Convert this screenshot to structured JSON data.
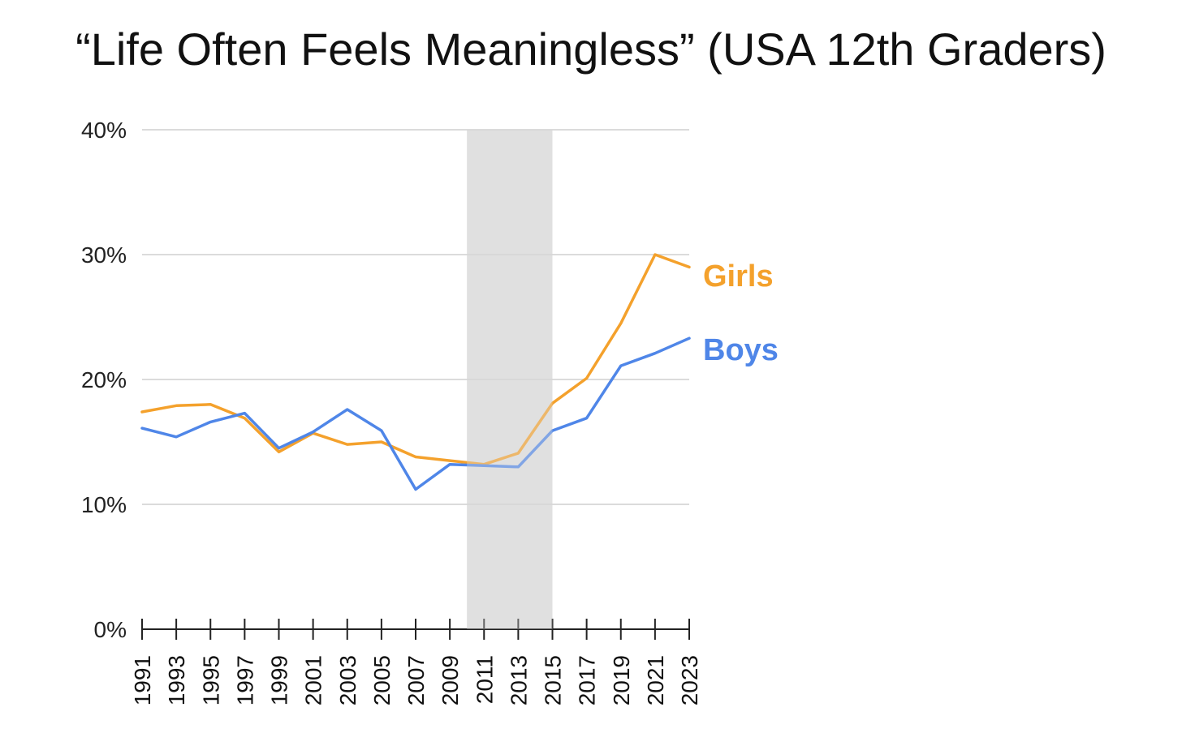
{
  "chart_data": {
    "type": "line",
    "title": "“Life Often Feels Meaningless” (USA 12th Graders)",
    "x": [
      "1991",
      "1993",
      "1995",
      "1997",
      "1999",
      "2001",
      "2003",
      "2005",
      "2007",
      "2009",
      "2011",
      "2013",
      "2015",
      "2017",
      "2019",
      "2021",
      "2023"
    ],
    "y_ticks": [
      {
        "value": 0,
        "label": "0%"
      },
      {
        "value": 10,
        "label": "10%"
      },
      {
        "value": 20,
        "label": "20%"
      },
      {
        "value": 30,
        "label": "30%"
      },
      {
        "value": 40,
        "label": "40%"
      }
    ],
    "ylim": [
      0,
      40
    ],
    "xlim": [
      1991,
      2023
    ],
    "grid": true,
    "shaded_band": {
      "from": 2010,
      "to": 2015,
      "color": "#e0e0e0"
    },
    "series": [
      {
        "name": "Girls",
        "color": "#f4a12c",
        "points": [
          [
            1991,
            17.4
          ],
          [
            1993,
            17.9
          ],
          [
            1995,
            18.0
          ],
          [
            1997,
            16.9
          ],
          [
            1999,
            14.2
          ],
          [
            2001,
            15.7
          ],
          [
            2003,
            14.8
          ],
          [
            2005,
            15.0
          ],
          [
            2007,
            13.8
          ],
          [
            2009,
            13.5
          ],
          [
            2011,
            13.2
          ],
          [
            2013,
            14.1
          ],
          [
            2015,
            18.1
          ],
          [
            2017,
            20.1
          ],
          [
            2019,
            24.5
          ],
          [
            2021,
            30.0
          ],
          [
            2023,
            29.0
          ]
        ]
      },
      {
        "name": "Boys",
        "color": "#4f86e8",
        "points": [
          [
            1991,
            16.1
          ],
          [
            1993,
            15.4
          ],
          [
            1995,
            16.6
          ],
          [
            1997,
            17.3
          ],
          [
            1999,
            14.5
          ],
          [
            2001,
            15.8
          ],
          [
            2003,
            17.6
          ],
          [
            2005,
            15.9
          ],
          [
            2007,
            11.2
          ],
          [
            2009,
            13.2
          ],
          [
            2011,
            13.1
          ],
          [
            2013,
            13.0
          ],
          [
            2015,
            15.9
          ],
          [
            2017,
            16.9
          ],
          [
            2019,
            21.1
          ],
          [
            2021,
            22.1
          ],
          [
            2023,
            23.3
          ]
        ]
      }
    ]
  }
}
